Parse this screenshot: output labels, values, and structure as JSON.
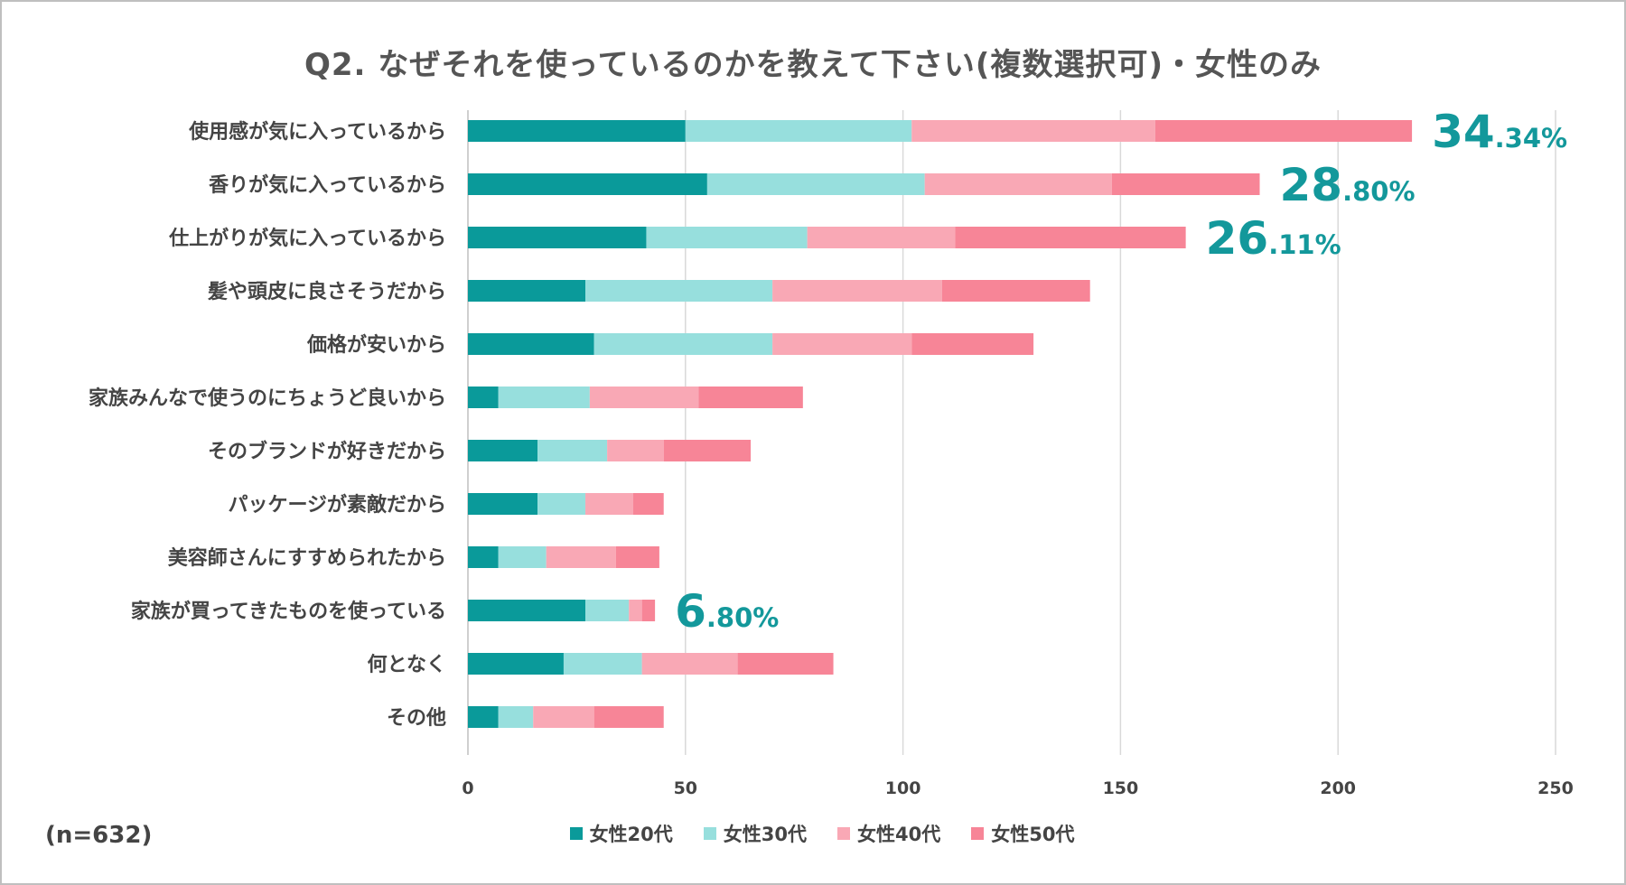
{
  "chart_data": {
    "type": "bar",
    "orientation": "horizontal",
    "stacked": true,
    "title": "Q2. なぜそれを使っているのかを教えて下さい(複数選択可)・女性のみ",
    "sample_note": "(n=632)",
    "categories": [
      "使用感が気に入っているから",
      "香りが気に入っているから",
      "仕上がりが気に入っているから",
      "髪や頭皮に良さそうだから",
      "価格が安いから",
      "家族みんなで使うのにちょうど良いから",
      "そのブランドが好きだから",
      "パッケージが素敵だから",
      "美容師さんにすすめられたから",
      "家族が買ってきたものを使っている",
      "何となく",
      "その他"
    ],
    "series": [
      {
        "name": "女性20代",
        "color": "#0a9a9a",
        "values": [
          50,
          55,
          41,
          27,
          29,
          7,
          16,
          16,
          7,
          27,
          22,
          7
        ]
      },
      {
        "name": "女性30代",
        "color": "#97dfdd",
        "values": [
          52,
          50,
          37,
          43,
          41,
          21,
          16,
          11,
          11,
          10,
          18,
          8
        ]
      },
      {
        "name": "女性40代",
        "color": "#f9a8b5",
        "values": [
          56,
          43,
          34,
          39,
          32,
          25,
          13,
          11,
          16,
          3,
          22,
          14
        ]
      },
      {
        "name": "女性50代",
        "color": "#f78597",
        "values": [
          59,
          34,
          53,
          34,
          28,
          24,
          20,
          7,
          10,
          3,
          22,
          16
        ]
      }
    ],
    "annotations": [
      {
        "category_index": 0,
        "int": "34",
        "dec": ".34%"
      },
      {
        "category_index": 1,
        "int": "28",
        "dec": ".80%"
      },
      {
        "category_index": 2,
        "int": "26",
        "dec": ".11%"
      },
      {
        "category_index": 9,
        "int": "6",
        "dec": ".80%"
      }
    ],
    "xlim": [
      0,
      250
    ],
    "xticks": [
      0,
      50,
      100,
      150,
      200,
      250
    ],
    "grid": true,
    "legend_position": "bottom"
  }
}
